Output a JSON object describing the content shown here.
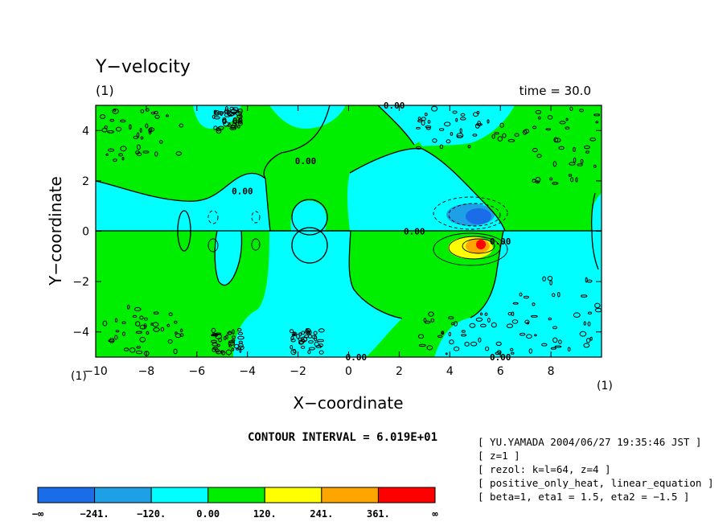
{
  "chart_data": {
    "type": "contour",
    "title": "Y−velocity",
    "panel_label_top": "(1)",
    "time_label": "time = 30.0",
    "xlabel": "X−coordinate",
    "ylabel": "Y−coordinate",
    "xlim": [
      -10,
      10
    ],
    "ylim": [
      -5,
      5
    ],
    "xticks": [
      -10,
      -8,
      -6,
      -4,
      -2,
      0,
      2,
      4,
      6,
      8
    ],
    "xtick_labels": [
      "−10",
      "−8",
      "−6",
      "−4",
      "−2",
      "0",
      "2",
      "4",
      "6",
      "8"
    ],
    "yticks": [
      -4,
      -2,
      0,
      2,
      4
    ],
    "ytick_labels": [
      "−4",
      "−2",
      "0",
      "2",
      "4"
    ],
    "axis_corner_left": "(1)",
    "axis_corner_right": "(1)",
    "contour_labels": [
      {
        "text": "0.00",
        "x": 1.8,
        "y": 5.0
      },
      {
        "text": "0.00",
        "x": -4.6,
        "y": 4.4
      },
      {
        "text": "0.00",
        "x": -1.7,
        "y": 2.8
      },
      {
        "text": "0.00",
        "x": -4.2,
        "y": 1.6
      },
      {
        "text": "0.00",
        "x": 2.6,
        "y": 0.0
      },
      {
        "text": "0.00",
        "x": 6.0,
        "y": -0.4
      },
      {
        "text": "0.00",
        "x": 0.3,
        "y": -5.0
      },
      {
        "text": "0.00",
        "x": 6.0,
        "y": -5.0
      }
    ],
    "contour_interval_text": "CONTOUR INTERVAL = 6.019E+01",
    "colorbar": {
      "colors": [
        "#1a6ce8",
        "#1ea0e6",
        "#00ffff",
        "#00ee00",
        "#ffff00",
        "#ffa500",
        "#ff0000"
      ],
      "labels": [
        "−∞",
        "−241.",
        "−120.",
        "0.00",
        "120.",
        "241.",
        "361.",
        "∞"
      ]
    },
    "info_lines": [
      "[ YU.YAMADA 2004/06/27 19:35:46 JST ]",
      "[ z=1 ]",
      "[ rezol: k=l=64, z=4 ]",
      "[ positive_only_heat, linear_equation ]",
      "[ beta=1, eta1 = 1.5, eta2 = −1.5 ]"
    ]
  }
}
